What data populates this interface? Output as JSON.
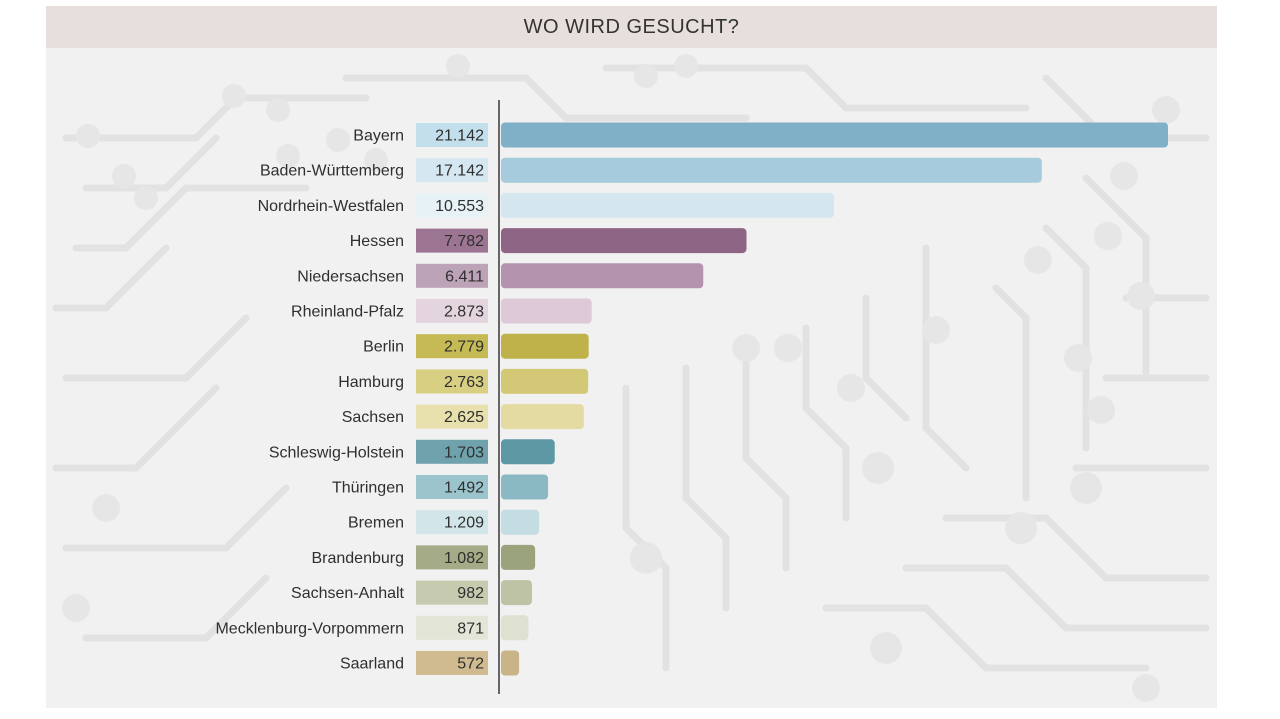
{
  "chart_data": {
    "type": "bar",
    "orientation": "horizontal",
    "title": "WO WIRD GESUCHT?",
    "categories": [
      "Bayern",
      "Baden-Württemberg",
      "Nordrhein-Westfalen",
      "Hessen",
      "Niedersachsen",
      "Rheinland-Pfalz",
      "Berlin",
      "Hamburg",
      "Sachsen",
      "Schleswig-Holstein",
      "Thüringen",
      "Bremen",
      "Brandenburg",
      "Sachsen-Anhalt",
      "Mecklenburg-Vorpommern",
      "Saarland"
    ],
    "values": [
      21142,
      17142,
      10553,
      7782,
      6411,
      2873,
      2779,
      2763,
      2625,
      1703,
      1492,
      1209,
      1082,
      982,
      871,
      572
    ],
    "value_labels": [
      "21.142",
      "17.142",
      "10.553",
      "7.782",
      "6.411",
      "2.873",
      "2.779",
      "2.763",
      "2.625",
      "1.703",
      "1.492",
      "1.209",
      "1.082",
      "982",
      "871",
      "572"
    ],
    "colors": [
      "#7fb0c8",
      "#a6cbdc",
      "#d4e6ee",
      "#8f6586",
      "#b393ad",
      "#ddc9d7",
      "#bfb24a",
      "#d3c875",
      "#e3dba2",
      "#5d98a4",
      "#8ab9c4",
      "#c3dde2",
      "#9ba37c",
      "#bec3a5",
      "#dee0d0",
      "#c9b487"
    ],
    "label_box_colors": [
      "#c4dfec",
      "#d5e8f1",
      "#e7f2f6",
      "#9c7593",
      "#bda3b7",
      "#e4d4de",
      "#c6ba55",
      "#d8cf82",
      "#e8e1ae",
      "#6fa2ad",
      "#9cc4cd",
      "#d2e6ea",
      "#a4ab86",
      "#c6cbaf",
      "#e3e5d7",
      "#cfbb8f"
    ],
    "xlim": [
      0,
      21142
    ],
    "grid": false,
    "legend": "none"
  }
}
